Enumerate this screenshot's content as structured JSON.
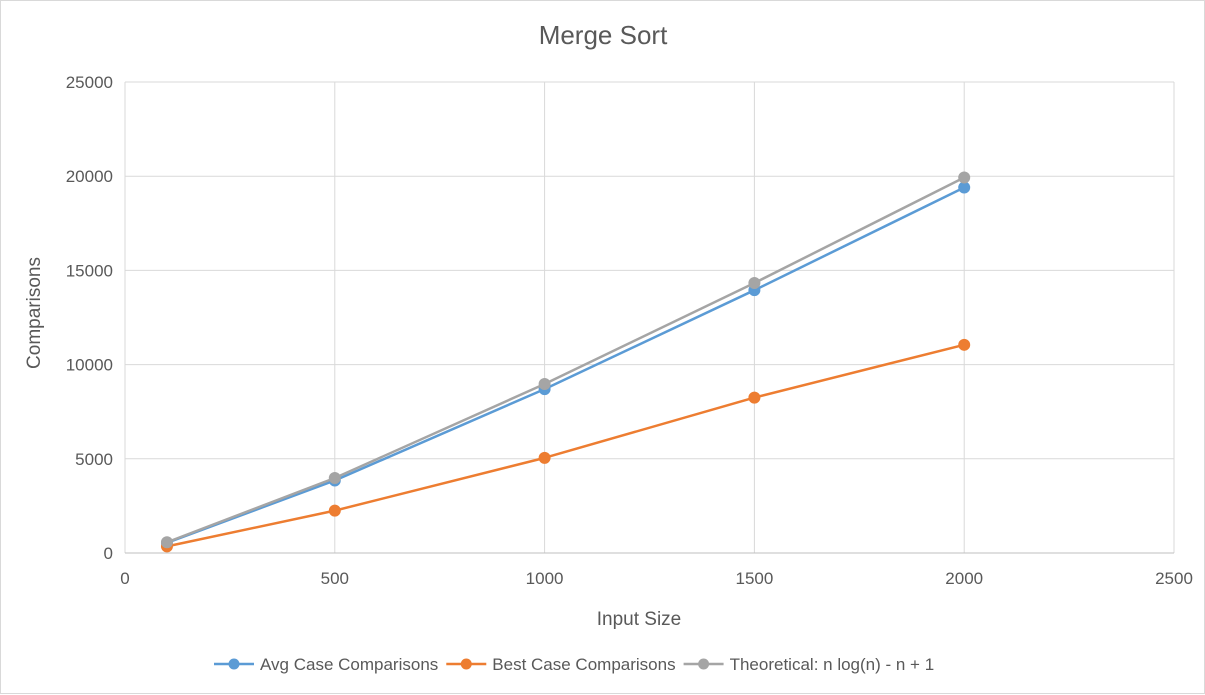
{
  "colors": {
    "avg": "#5b9bd5",
    "best": "#ed7d31",
    "theoretical": "#a5a5a5",
    "grid": "#d9d9d9",
    "text": "#595959"
  },
  "chart_data": {
    "type": "scatter",
    "title": "Merge Sort",
    "xlabel": "Input Size",
    "ylabel": "Comparisons",
    "xlim": [
      0,
      2500
    ],
    "ylim": [
      0,
      25000
    ],
    "x_ticks": [
      0,
      500,
      1000,
      1500,
      2000,
      2500
    ],
    "y_ticks": [
      0,
      5000,
      10000,
      15000,
      20000,
      25000
    ],
    "grid": true,
    "legend_position": "bottom",
    "series": [
      {
        "name": "Avg Case Comparisons",
        "color_key": "avg",
        "x": [
          100,
          500,
          1000,
          1500,
          2000
        ],
        "y": [
          540,
          3850,
          8700,
          13950,
          19400
        ]
      },
      {
        "name": "Best Case Comparisons",
        "color_key": "best",
        "x": [
          100,
          500,
          1000,
          1500,
          2000
        ],
        "y": [
          350,
          2250,
          5050,
          8250,
          11050
        ]
      },
      {
        "name": "Theoretical: n log(n) - n + 1",
        "color_key": "theoretical",
        "x": [
          100,
          500,
          1000,
          1500,
          2000
        ],
        "y": [
          570,
          3980,
          8970,
          14330,
          19930
        ]
      }
    ]
  }
}
